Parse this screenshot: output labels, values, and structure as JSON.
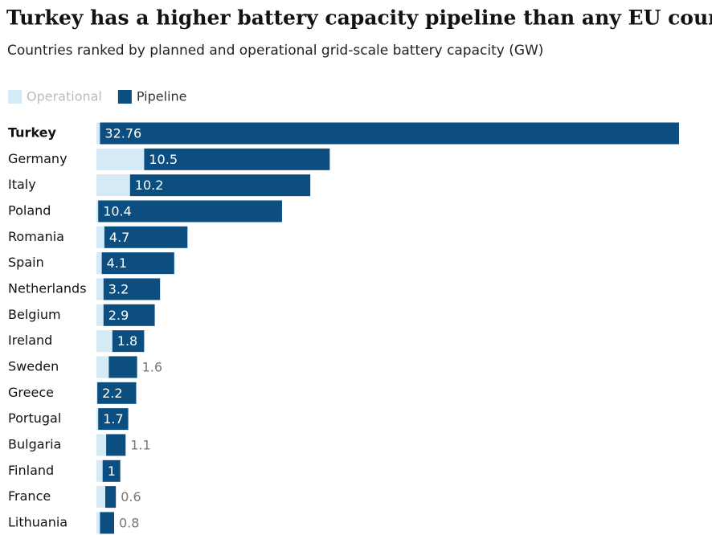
{
  "chart_data": {
    "type": "bar",
    "orientation": "horizontal",
    "title": "Turkey has a higher battery capacity pipeline than any EU country",
    "subtitle": "Countries ranked by planned and operational grid-scale battery capacity (GW)",
    "categories": [
      "Turkey",
      "Germany",
      "Italy",
      "Poland",
      "Romania",
      "Spain",
      "Netherlands",
      "Belgium",
      "Ireland",
      "Sweden",
      "Greece",
      "Portugal",
      "Bulgaria",
      "Finland",
      "France",
      "Lithuania"
    ],
    "series": [
      {
        "name": "Operational",
        "color": "#d5eaf7",
        "values": [
          0.2,
          2.7,
          1.9,
          0.1,
          0.45,
          0.3,
          0.4,
          0.4,
          0.9,
          0.7,
          0.05,
          0.1,
          0.55,
          0.35,
          0.5,
          0.2
        ]
      },
      {
        "name": "Pipeline",
        "color": "#0c4e80",
        "values": [
          32.76,
          10.5,
          10.2,
          10.4,
          4.7,
          4.1,
          3.2,
          2.9,
          1.8,
          1.6,
          2.2,
          1.7,
          1.1,
          1,
          0.6,
          0.8
        ]
      }
    ],
    "stacked": true
  }
}
